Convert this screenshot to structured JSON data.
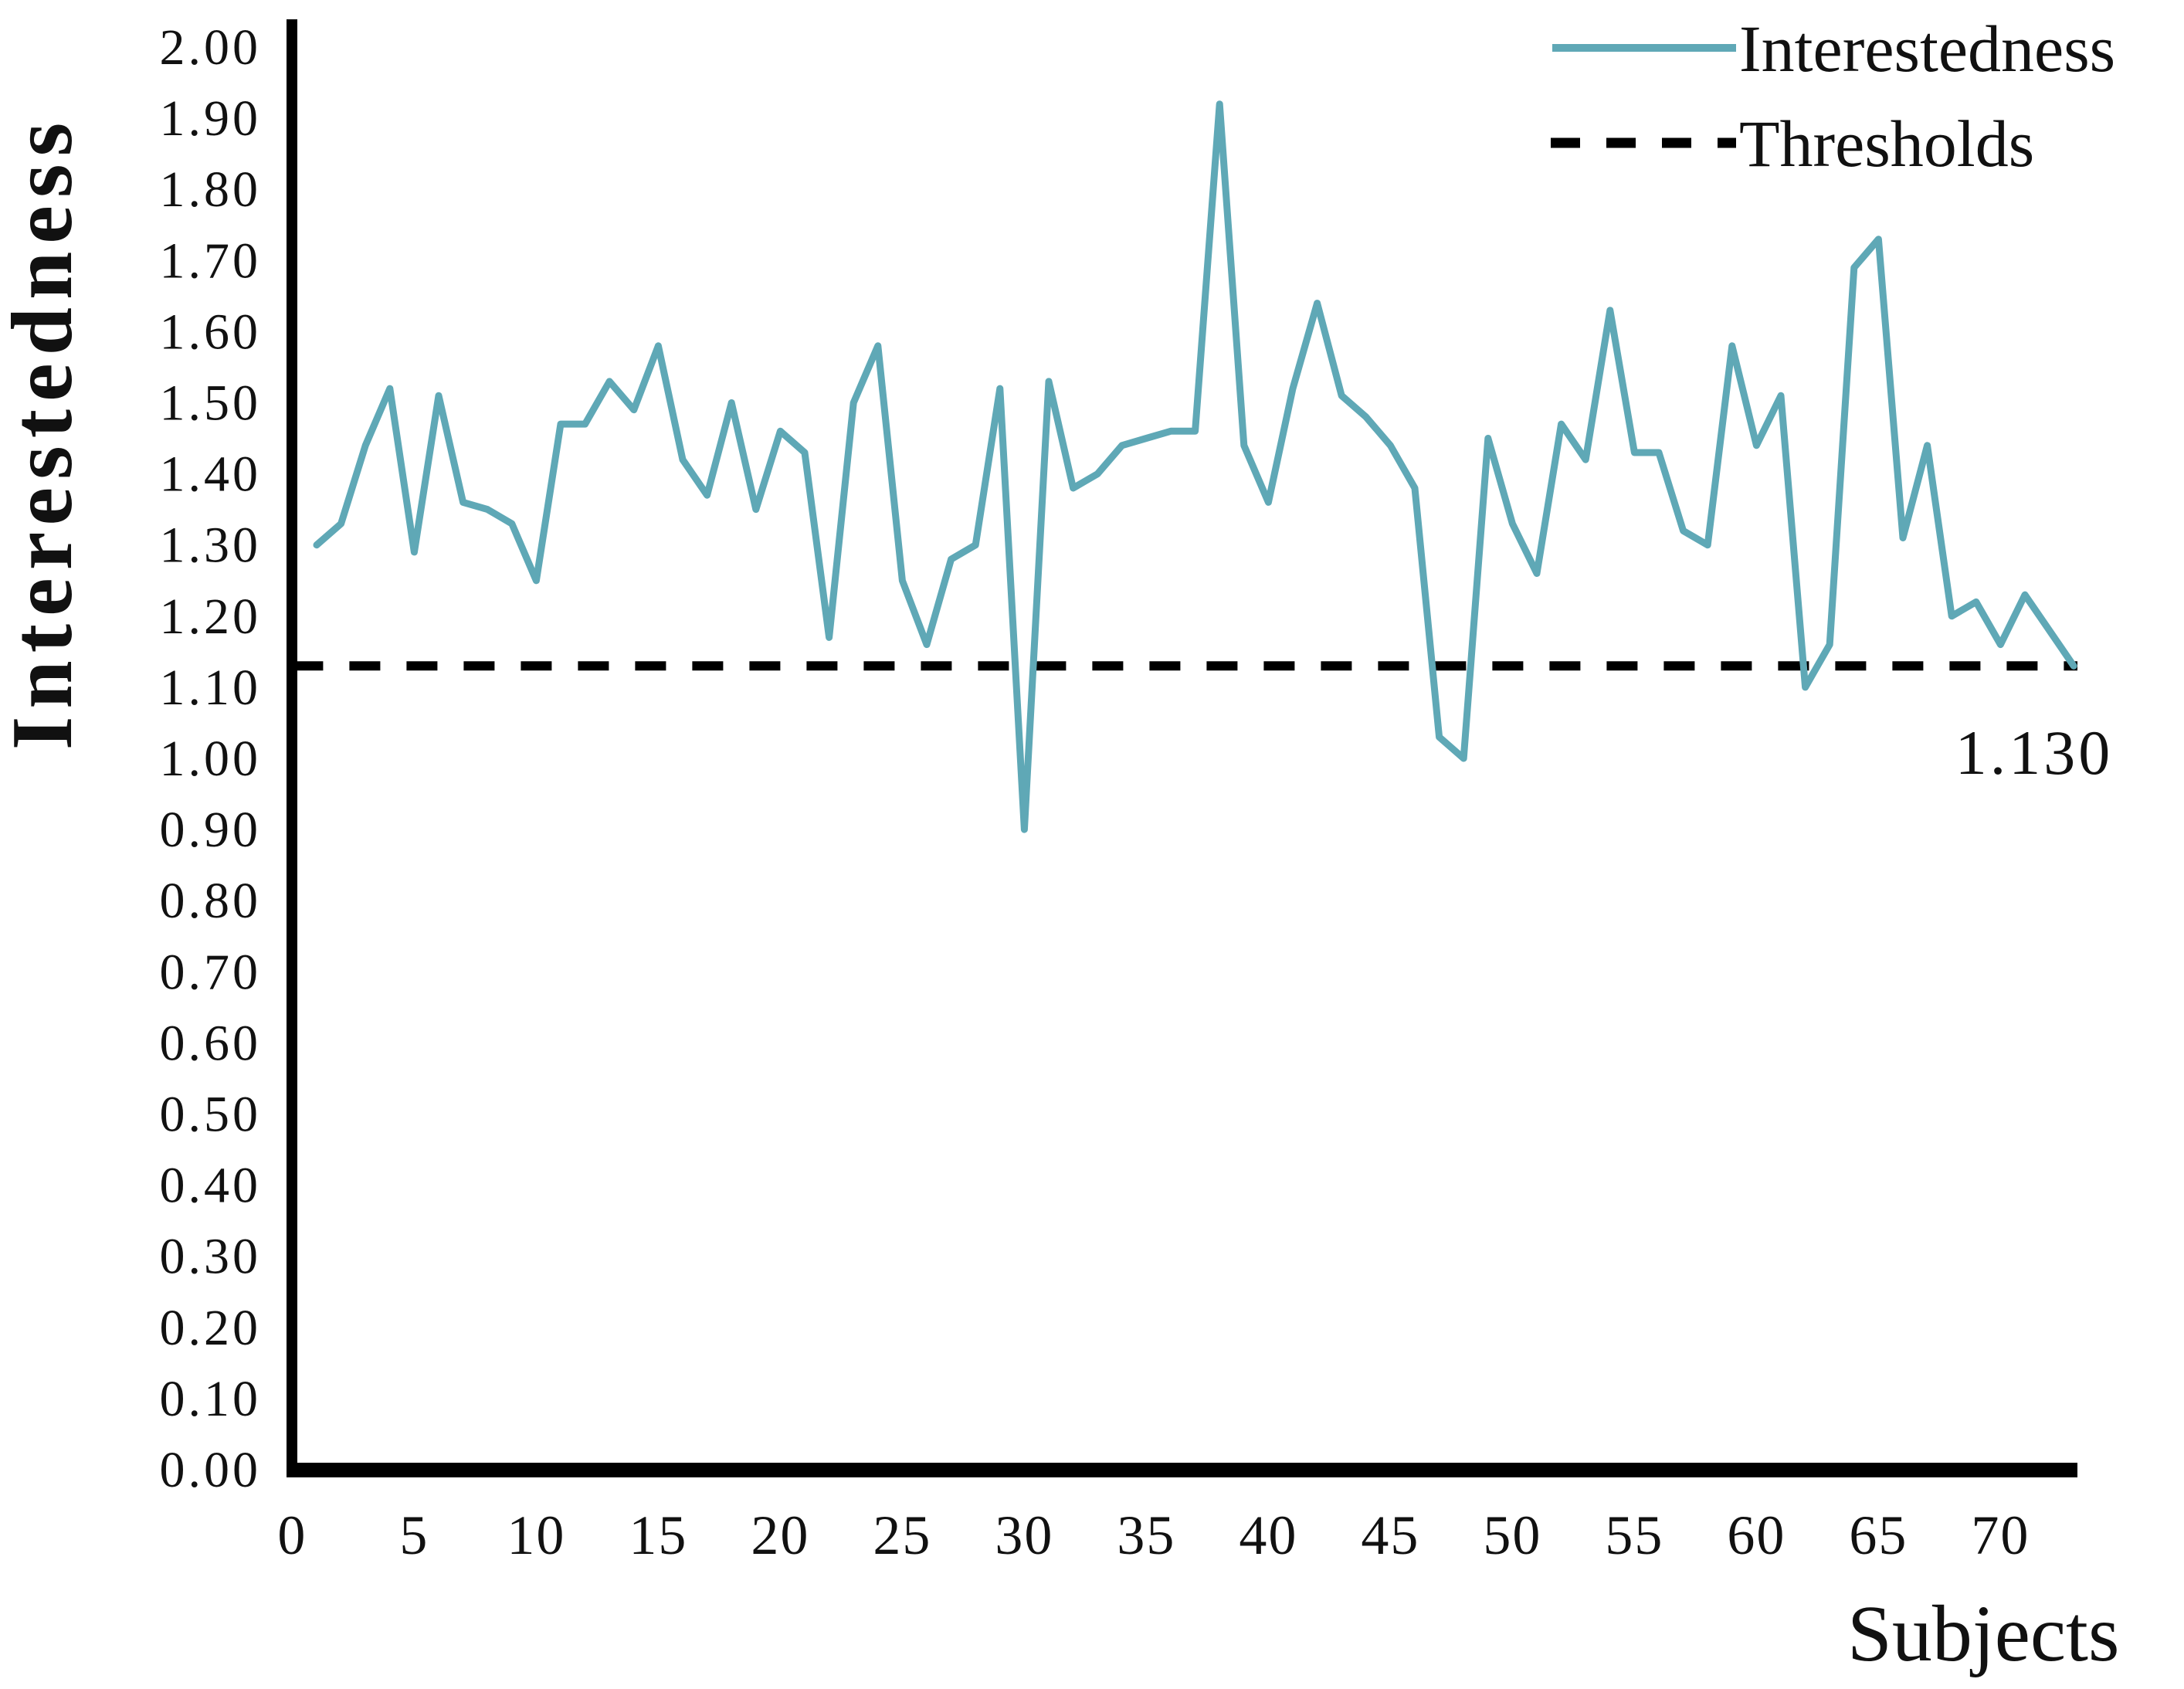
{
  "chart_data": {
    "type": "line",
    "title": "",
    "xlabel": "Subjects",
    "ylabel": "Interestedness",
    "ylim": [
      0.0,
      2.0
    ],
    "ytick_step": 0.1,
    "y_tick_labels": [
      "0.00",
      "0.10",
      "0.20",
      "0.30",
      "0.40",
      "0.50",
      "0.60",
      "0.70",
      "0.80",
      "0.90",
      "1.00",
      "1.10",
      "1.20",
      "1.30",
      "1.40",
      "1.50",
      "1.60",
      "1.70",
      "1.80",
      "1.90",
      "2.00"
    ],
    "x_tick_labels": [
      "0",
      "5",
      "10",
      "15",
      "20",
      "25",
      "30",
      "35",
      "40",
      "45",
      "50",
      "55",
      "60",
      "65",
      "70"
    ],
    "x_ticks": [
      0,
      5,
      10,
      15,
      20,
      25,
      30,
      35,
      40,
      45,
      50,
      55,
      60,
      65,
      70
    ],
    "grid": false,
    "legend_position": "top-right",
    "x_start": 1,
    "series": [
      {
        "name": "Interestedness",
        "type": "line",
        "color": "#5FA8B6",
        "values": [
          1.3,
          1.33,
          1.44,
          1.52,
          1.29,
          1.51,
          1.36,
          1.35,
          1.33,
          1.25,
          1.47,
          1.47,
          1.53,
          1.49,
          1.58,
          1.42,
          1.37,
          1.5,
          1.35,
          1.46,
          1.43,
          1.17,
          1.5,
          1.58,
          1.25,
          1.16,
          1.28,
          1.3,
          1.52,
          0.9,
          1.53,
          1.38,
          1.4,
          1.44,
          1.45,
          1.46,
          1.46,
          1.92,
          1.44,
          1.36,
          1.52,
          1.64,
          1.51,
          1.48,
          1.44,
          1.38,
          1.03,
          1.0,
          1.45,
          1.33,
          1.26,
          1.47,
          1.42,
          1.63,
          1.43,
          1.43,
          1.32,
          1.3,
          1.58,
          1.44,
          1.51,
          1.1,
          1.16,
          1.69,
          1.73,
          1.31,
          1.44,
          1.2,
          1.22,
          1.16,
          1.23,
          1.18,
          1.13
        ]
      },
      {
        "name": "Thresholds",
        "type": "threshold-line",
        "style": "dashed",
        "color": "#000000",
        "value": 1.13
      }
    ]
  },
  "legend": {
    "items": [
      {
        "label": "Interestedness",
        "swatch": "solid-teal-line"
      },
      {
        "label": "Thresholds",
        "swatch": "dashed-black-line"
      }
    ]
  },
  "annotations": {
    "threshold_label": "1.130"
  },
  "axes": {
    "x_title": "Subjects",
    "y_title": "Interestedness"
  }
}
